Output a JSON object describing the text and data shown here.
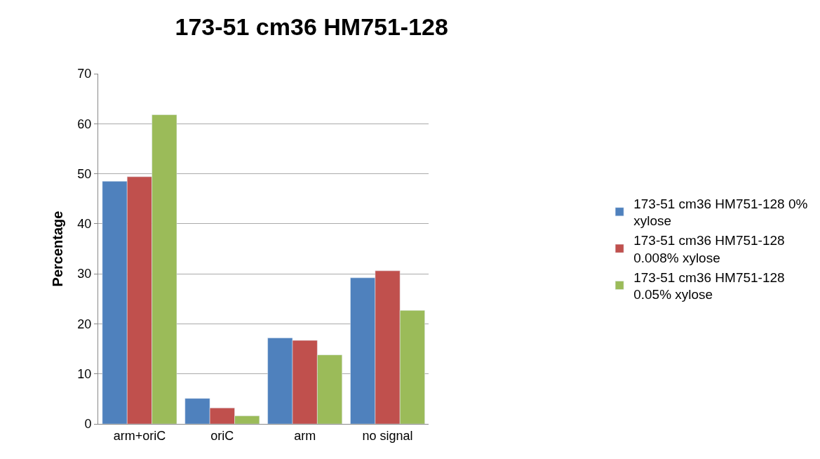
{
  "chart_data": {
    "type": "bar",
    "title": "173-51 cm36 HM751-128",
    "ylabel": "Percentage",
    "categories": [
      "arm+oriC",
      "oriC",
      "arm",
      "no signal"
    ],
    "series": [
      {
        "name": "173-51 cm36 HM751-128 0% xylose",
        "color": "#4f81bd",
        "values": [
          48.5,
          5.1,
          17.2,
          29.2
        ]
      },
      {
        "name": "173-51 cm36 HM751-128 0.008% xylose",
        "color": "#c0504d",
        "values": [
          49.4,
          3.2,
          16.7,
          30.6
        ]
      },
      {
        "name": "173-51 cm36 HM751-128 0.05% xylose",
        "color": "#9bbb59",
        "values": [
          61.8,
          1.6,
          13.8,
          22.7
        ]
      }
    ],
    "ylim": [
      0,
      70
    ],
    "yticks": [
      0,
      10,
      20,
      30,
      40,
      50,
      60,
      70
    ],
    "grid": "y",
    "legend": "right"
  }
}
